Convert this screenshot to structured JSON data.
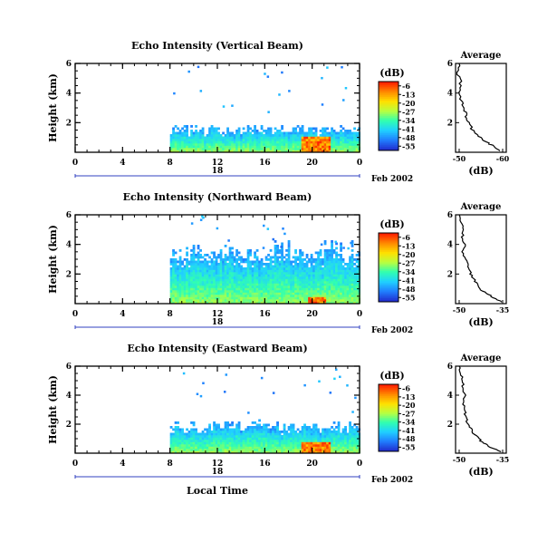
{
  "chart_data": [
    {
      "type": "heatmap",
      "title": "Echo Intensity (Vertical Beam)",
      "ylabel": "Height (km)",
      "xlabel": "",
      "xlim": [
        0,
        24
      ],
      "ylim": [
        0,
        6
      ],
      "x_ticks": [
        "0",
        "4",
        "8",
        "12",
        "16",
        "20",
        "0"
      ],
      "y_ticks": [
        "2",
        "4",
        "6"
      ],
      "date_marker": "18",
      "date_label": "Feb 2002",
      "data_start_hour": 8,
      "echo_top_km": 1.6,
      "hotspot": {
        "x_start": 19,
        "x_end": 21.5,
        "top_km": 1.0
      },
      "colorbar": {
        "title": "(dB)",
        "ticks": [
          "-6",
          "-13",
          "-20",
          "-27",
          "-34",
          "-41",
          "-48",
          "-55"
        ]
      },
      "average_profile": {
        "title": "Average",
        "xlabel": "(dB)",
        "x_ticks": [
          "-50",
          "-60"
        ],
        "y_ticks": [
          "2",
          "4",
          "6"
        ],
        "xlim": [
          -48,
          -62
        ],
        "ylim": [
          0,
          6
        ],
        "profile_db": [
          -60.5,
          -58.5,
          -56.5,
          -55,
          -53.5,
          -52.5,
          -51.5,
          -51,
          -50.5,
          -50,
          -49.5,
          -49,
          -49.5,
          -48.5,
          -49
        ],
        "profile_km": [
          0.1,
          0.4,
          0.7,
          1.0,
          1.3,
          1.6,
          2.0,
          2.4,
          2.8,
          3.2,
          3.6,
          4.2,
          4.8,
          5.4,
          6.0
        ]
      }
    },
    {
      "type": "heatmap",
      "title": "Echo Intensity (Northward Beam)",
      "ylabel": "Height (km)",
      "xlabel": "",
      "xlim": [
        0,
        24
      ],
      "ylim": [
        0,
        6
      ],
      "x_ticks": [
        "0",
        "4",
        "8",
        "12",
        "16",
        "20",
        "0"
      ],
      "y_ticks": [
        "2",
        "4",
        "6"
      ],
      "date_marker": "18",
      "date_label": "Feb 2002",
      "data_start_hour": 8,
      "echo_top_km": 3.8,
      "hotspot": {
        "x_start": 19.5,
        "x_end": 21,
        "top_km": 0.4
      },
      "colorbar": {
        "title": "(dB)",
        "ticks": [
          "-6",
          "-13",
          "-20",
          "-27",
          "-34",
          "-41",
          "-48",
          "-55"
        ]
      },
      "average_profile": {
        "title": "Average",
        "xlabel": "(dB)",
        "x_ticks": [
          "-50",
          "-35"
        ],
        "y_ticks": [
          "2",
          "4",
          "6"
        ],
        "xlim": [
          -53,
          -33
        ],
        "ylim": [
          0,
          6
        ],
        "profile_db": [
          -35,
          -38,
          -41,
          -43.5,
          -45,
          -46.5,
          -47.5,
          -48,
          -49,
          -50,
          -49,
          -50.5,
          -49.5,
          -51,
          -51.5
        ],
        "profile_km": [
          0.1,
          0.4,
          0.7,
          1.0,
          1.4,
          1.8,
          2.2,
          2.6,
          3.0,
          3.5,
          4.0,
          4.5,
          5.0,
          5.5,
          6.0
        ]
      }
    },
    {
      "type": "heatmap",
      "title": "Echo Intensity (Eastward Beam)",
      "ylabel": "Height (km)",
      "xlabel": "Local Time",
      "xlim": [
        0,
        24
      ],
      "ylim": [
        0,
        6
      ],
      "x_ticks": [
        "0",
        "4",
        "8",
        "12",
        "16",
        "20",
        "0"
      ],
      "y_ticks": [
        "2",
        "4",
        "6"
      ],
      "date_marker": "18",
      "date_label": "Feb 2002",
      "data_start_hour": 8,
      "echo_top_km": 2.0,
      "hotspot": {
        "x_start": 19,
        "x_end": 21.5,
        "top_km": 0.7
      },
      "colorbar": {
        "title": "(dB)",
        "ticks": [
          "-6",
          "-13",
          "-20",
          "-27",
          "-34",
          "-41",
          "-48",
          "-55"
        ]
      },
      "average_profile": {
        "title": "Average",
        "xlabel": "(dB)",
        "x_ticks": [
          "-50",
          "-35"
        ],
        "y_ticks": [
          "2",
          "4",
          "6"
        ],
        "xlim": [
          -53,
          -33
        ],
        "ylim": [
          0,
          6
        ],
        "profile_db": [
          -35,
          -39,
          -42,
          -44,
          -46,
          -47.5,
          -48.5,
          -49,
          -49.5,
          -50,
          -49.5,
          -50.5,
          -50,
          -51,
          -51.5
        ],
        "profile_km": [
          0.1,
          0.4,
          0.7,
          1.0,
          1.4,
          1.8,
          2.2,
          2.6,
          3.0,
          3.5,
          4.0,
          4.5,
          5.0,
          5.5,
          6.0
        ]
      }
    }
  ],
  "colors": {
    "colorbar_stops": [
      "#ff2000",
      "#ff8a00",
      "#ffe000",
      "#b8ff40",
      "#30ffb0",
      "#20d0ff",
      "#2080ff",
      "#2030d0"
    ],
    "axis": "#000000",
    "date_line": "#3040c0"
  }
}
